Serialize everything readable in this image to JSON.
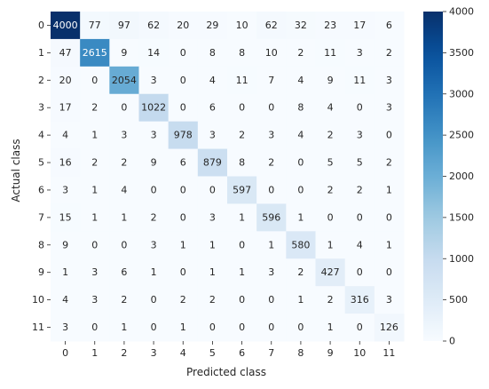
{
  "chart_data": {
    "type": "heatmap",
    "x_label": "Predicted class",
    "y_label": "Actual class",
    "x_categories": [
      "0",
      "1",
      "2",
      "3",
      "4",
      "5",
      "6",
      "7",
      "8",
      "9",
      "10",
      "11"
    ],
    "y_categories": [
      "0",
      "1",
      "2",
      "3",
      "4",
      "5",
      "6",
      "7",
      "8",
      "9",
      "10",
      "11"
    ],
    "values": [
      [
        4000,
        77,
        97,
        62,
        20,
        29,
        10,
        62,
        32,
        23,
        17,
        6
      ],
      [
        47,
        2615,
        9,
        14,
        0,
        8,
        8,
        10,
        2,
        11,
        3,
        2
      ],
      [
        20,
        0,
        2054,
        3,
        0,
        4,
        11,
        7,
        4,
        9,
        11,
        3
      ],
      [
        17,
        2,
        0,
        1022,
        0,
        6,
        0,
        0,
        8,
        4,
        0,
        3
      ],
      [
        4,
        1,
        3,
        3,
        978,
        3,
        2,
        3,
        4,
        2,
        3,
        0
      ],
      [
        16,
        2,
        2,
        9,
        6,
        879,
        8,
        2,
        0,
        5,
        5,
        2
      ],
      [
        3,
        1,
        4,
        0,
        0,
        0,
        597,
        0,
        0,
        2,
        2,
        1
      ],
      [
        15,
        1,
        1,
        2,
        0,
        3,
        1,
        596,
        1,
        0,
        0,
        0
      ],
      [
        9,
        0,
        0,
        3,
        1,
        1,
        0,
        1,
        580,
        1,
        4,
        1
      ],
      [
        1,
        3,
        6,
        1,
        0,
        1,
        1,
        3,
        2,
        427,
        0,
        0
      ],
      [
        4,
        3,
        2,
        0,
        2,
        2,
        0,
        0,
        1,
        2,
        316,
        3
      ],
      [
        3,
        0,
        1,
        0,
        1,
        0,
        0,
        0,
        0,
        1,
        0,
        126
      ]
    ],
    "colorbar": {
      "colormap": "Blues",
      "vmin": 0,
      "vmax": 4000,
      "ticks": [
        0,
        500,
        1000,
        1500,
        2000,
        2500,
        3000,
        3500,
        4000
      ]
    }
  }
}
